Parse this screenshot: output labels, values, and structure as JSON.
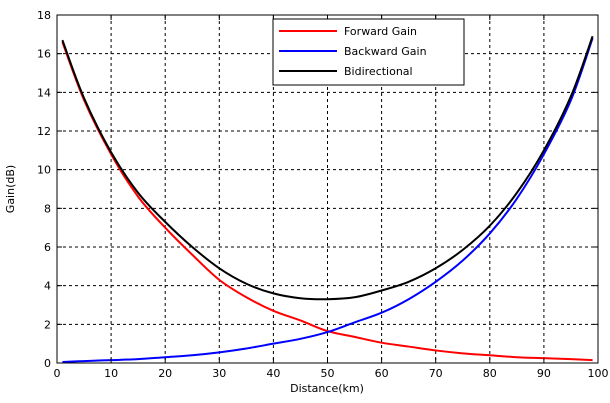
{
  "chart_data": {
    "type": "line",
    "title": "",
    "xlabel": "Distance(km)",
    "ylabel": "Gain(dB)",
    "xlim": [
      0,
      100
    ],
    "ylim": [
      0,
      18
    ],
    "xticks": [
      "0",
      "10",
      "20",
      "30",
      "40",
      "50",
      "60",
      "70",
      "80",
      "90",
      "100"
    ],
    "yticks": [
      "0",
      "2",
      "4",
      "6",
      "8",
      "10",
      "12",
      "14",
      "16",
      "18"
    ],
    "grid": true,
    "legend_position": "top-center",
    "x": [
      1,
      5,
      10,
      15,
      20,
      25,
      30,
      35,
      40,
      45,
      50,
      55,
      60,
      65,
      70,
      75,
      80,
      85,
      90,
      95,
      99
    ],
    "series": [
      {
        "name": "Forward Gain",
        "color": "#ff0000",
        "values": [
          16.6,
          13.6,
          10.8,
          8.6,
          7.0,
          5.6,
          4.3,
          3.4,
          2.7,
          2.2,
          1.65,
          1.35,
          1.05,
          0.85,
          0.65,
          0.5,
          0.4,
          0.3,
          0.25,
          0.2,
          0.15
        ]
      },
      {
        "name": "Backward Gain",
        "color": "#0000ff",
        "values": [
          0.05,
          0.1,
          0.15,
          0.2,
          0.3,
          0.4,
          0.55,
          0.75,
          1.0,
          1.25,
          1.6,
          2.1,
          2.6,
          3.3,
          4.2,
          5.3,
          6.7,
          8.5,
          10.8,
          13.6,
          16.8
        ]
      },
      {
        "name": "Bidirectional",
        "color": "#000000",
        "values": [
          16.7,
          13.7,
          10.9,
          8.8,
          7.3,
          6.0,
          4.9,
          4.1,
          3.6,
          3.35,
          3.3,
          3.4,
          3.75,
          4.2,
          4.9,
          5.85,
          7.1,
          8.8,
          11.0,
          13.8,
          16.9
        ]
      }
    ]
  }
}
